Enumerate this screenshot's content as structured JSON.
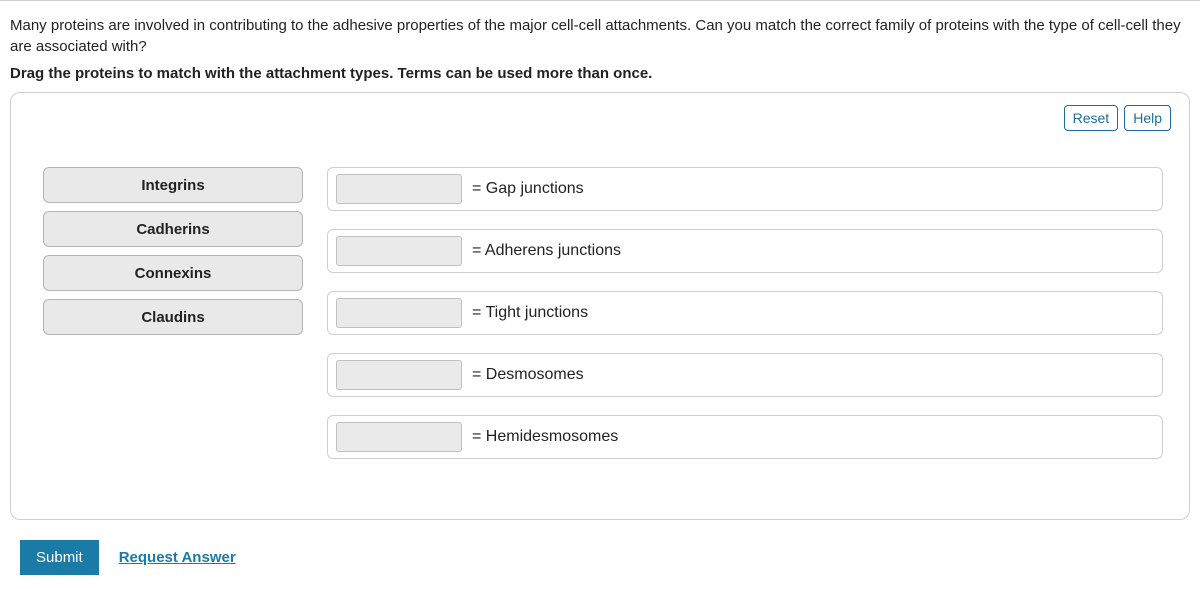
{
  "question": {
    "prompt": "Many proteins are involved in contributing to the adhesive properties of the major cell-cell attachments. Can you match the correct family of proteins with the type of cell-cell they are associated with?",
    "instruction": "Drag the proteins to match with the attachment types. Terms can be used more than once."
  },
  "toolbar": {
    "reset": "Reset",
    "help": "Help"
  },
  "draggables": {
    "items": [
      "Integrins",
      "Cadherins",
      "Connexins",
      "Claudins"
    ]
  },
  "targets": {
    "rows": [
      {
        "label": "= Gap junctions"
      },
      {
        "label": "= Adherens junctions"
      },
      {
        "label": "= Tight junctions"
      },
      {
        "label": "= Desmosomes"
      },
      {
        "label": "= Hemidesmosomes"
      }
    ]
  },
  "footer": {
    "submit": "Submit",
    "request": "Request Answer"
  },
  "colors": {
    "border": "#cfcfcf",
    "drag_bg": "#e9e9e9",
    "drag_border": "#b5b5b5",
    "slot_bg": "#eaeaea",
    "slot_border": "#bfbfbf",
    "accent": "#1a7ca6",
    "tool_border": "#1a6f9e",
    "text": "#222222",
    "background": "#ffffff"
  }
}
